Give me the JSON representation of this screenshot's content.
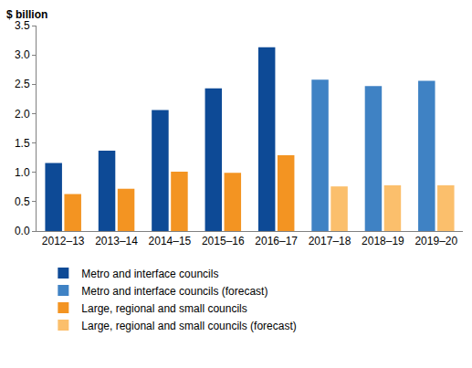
{
  "chart_data": {
    "type": "bar",
    "y_label": "$ billion",
    "categories": [
      "2012–13",
      "2013–14",
      "2014–15",
      "2015–16",
      "2016–17",
      "2017–18",
      "2018–19",
      "2019–20"
    ],
    "series": [
      {
        "name": "Metro and interface councils",
        "color": "#0d4a96",
        "group": "metro",
        "values": [
          1.16,
          1.37,
          2.06,
          2.43,
          3.13,
          null,
          null,
          null
        ]
      },
      {
        "name": "Metro and interface councils (forecast)",
        "color": "#3f82c4",
        "group": "metro",
        "values": [
          null,
          null,
          null,
          null,
          null,
          2.58,
          2.47,
          2.56
        ]
      },
      {
        "name": "Large, regional and small councils",
        "color": "#f39422",
        "group": "regional",
        "values": [
          0.63,
          0.72,
          1.01,
          0.99,
          1.29,
          null,
          null,
          null
        ]
      },
      {
        "name": "Large, regional and small councils (forecast)",
        "color": "#fbbf6c",
        "group": "regional",
        "values": [
          null,
          null,
          null,
          null,
          null,
          0.76,
          0.78,
          0.78
        ]
      }
    ],
    "ylim": [
      0,
      3.5
    ],
    "yticks": [
      {
        "value": 0,
        "label": "0.0"
      },
      0.5,
      {
        "value": 1,
        "label": "1.0"
      },
      1.5,
      {
        "value": 2,
        "label": "2.0"
      },
      2.5,
      {
        "value": 3,
        "label": "3.0"
      },
      3.5
    ],
    "grid": false,
    "legend": "bottom"
  }
}
